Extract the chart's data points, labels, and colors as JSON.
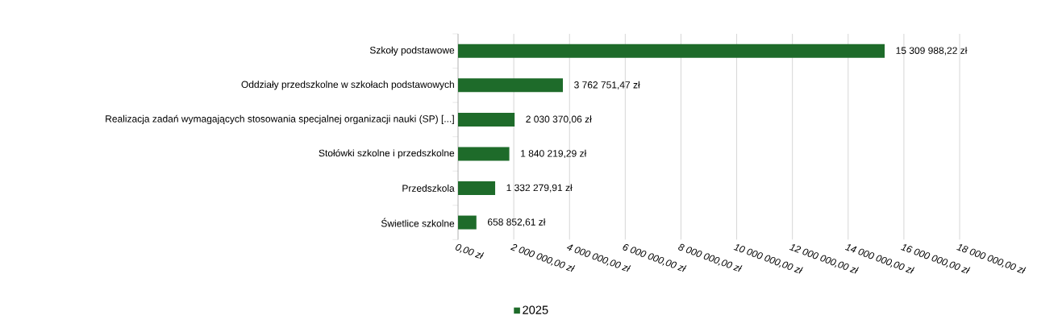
{
  "chart_data": {
    "type": "bar",
    "orientation": "horizontal",
    "categories": [
      "Szkoły podstawowe",
      "Oddziały przedszkolne w szkołach podstawowych",
      "Realizacja zadań wymagających stosowania specjalnej organizacji nauki (SP) [...]",
      "Stołówki szkolne i przedszkolne",
      "Przedszkola",
      "Świetlice szkolne"
    ],
    "series": [
      {
        "name": "2025",
        "color": "#1e6b2a",
        "values": [
          15309988.22,
          3762751.47,
          2030370.06,
          1840219.29,
          1332279.91,
          658852.61
        ],
        "value_labels": [
          "15 309 988,22 zł",
          "3 762 751,47 zł",
          "2 030 370,06 zł",
          "1 840 219,29 zł",
          "1 332 279,91 zł",
          "658 852,61 zł"
        ]
      }
    ],
    "xlim": [
      0,
      18000000
    ],
    "xticks": [
      {
        "value": 0,
        "label": "0,00 zł"
      },
      {
        "value": 2000000,
        "label": "2 000 000,00 zł"
      },
      {
        "value": 4000000,
        "label": "4 000 000,00 zł"
      },
      {
        "value": 6000000,
        "label": "6 000 000,00 zł"
      },
      {
        "value": 8000000,
        "label": "8 000 000,00 zł"
      },
      {
        "value": 10000000,
        "label": "10 000 000,00 zł"
      },
      {
        "value": 12000000,
        "label": "12 000 000,00 zł"
      },
      {
        "value": 14000000,
        "label": "14 000 000,00 zł"
      },
      {
        "value": 16000000,
        "label": "16 000 000,00 zł"
      },
      {
        "value": 18000000,
        "label": "18 000 000,00 zł"
      }
    ],
    "grid": "x",
    "legend": "bottom"
  }
}
